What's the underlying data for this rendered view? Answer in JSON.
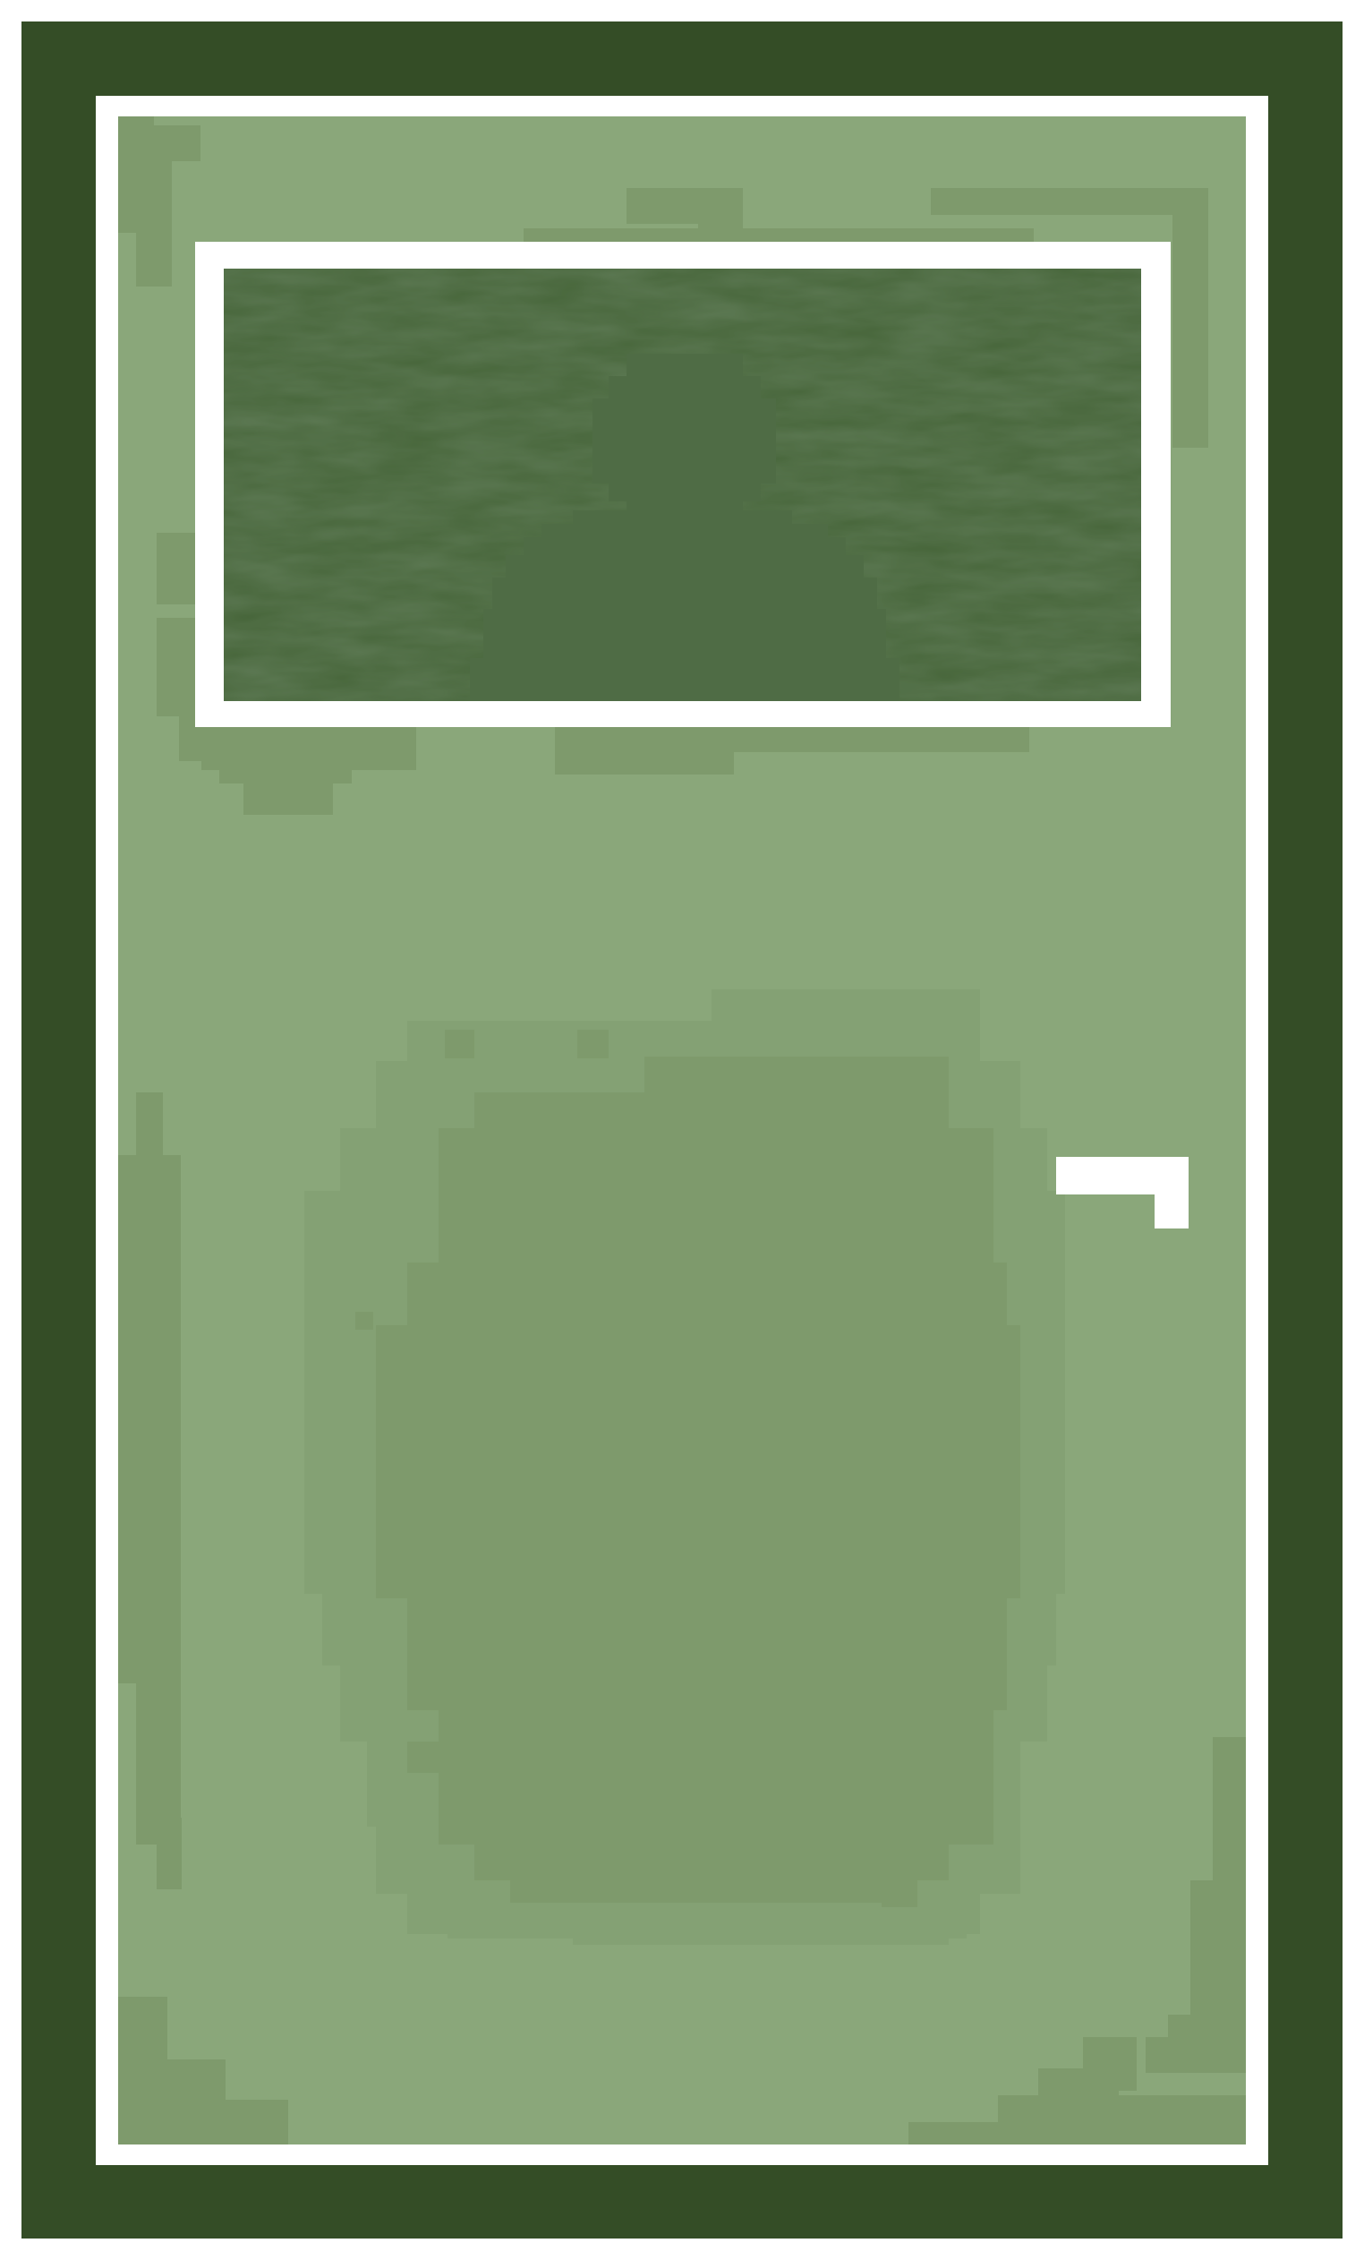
{
  "sprite": {
    "kind": "door",
    "style": "pixel-art",
    "colors": {
      "outer_frame": "#344d26",
      "inner_border": "#ffffff",
      "panel": "#8aa77a",
      "panel_shade": "#7e9a6c",
      "panel_shade_mid": "#84a174",
      "window_glass": "#466539",
      "window_glass_dark": "#3e5a33",
      "silhouette": "#4f6c45",
      "handle": "#ffffff"
    },
    "parts": {
      "window": {
        "icon": "window-icon",
        "has_silhouette": true
      },
      "handle": {
        "icon": "door-handle-icon"
      },
      "center_stain": {
        "shape": "oval"
      }
    }
  }
}
